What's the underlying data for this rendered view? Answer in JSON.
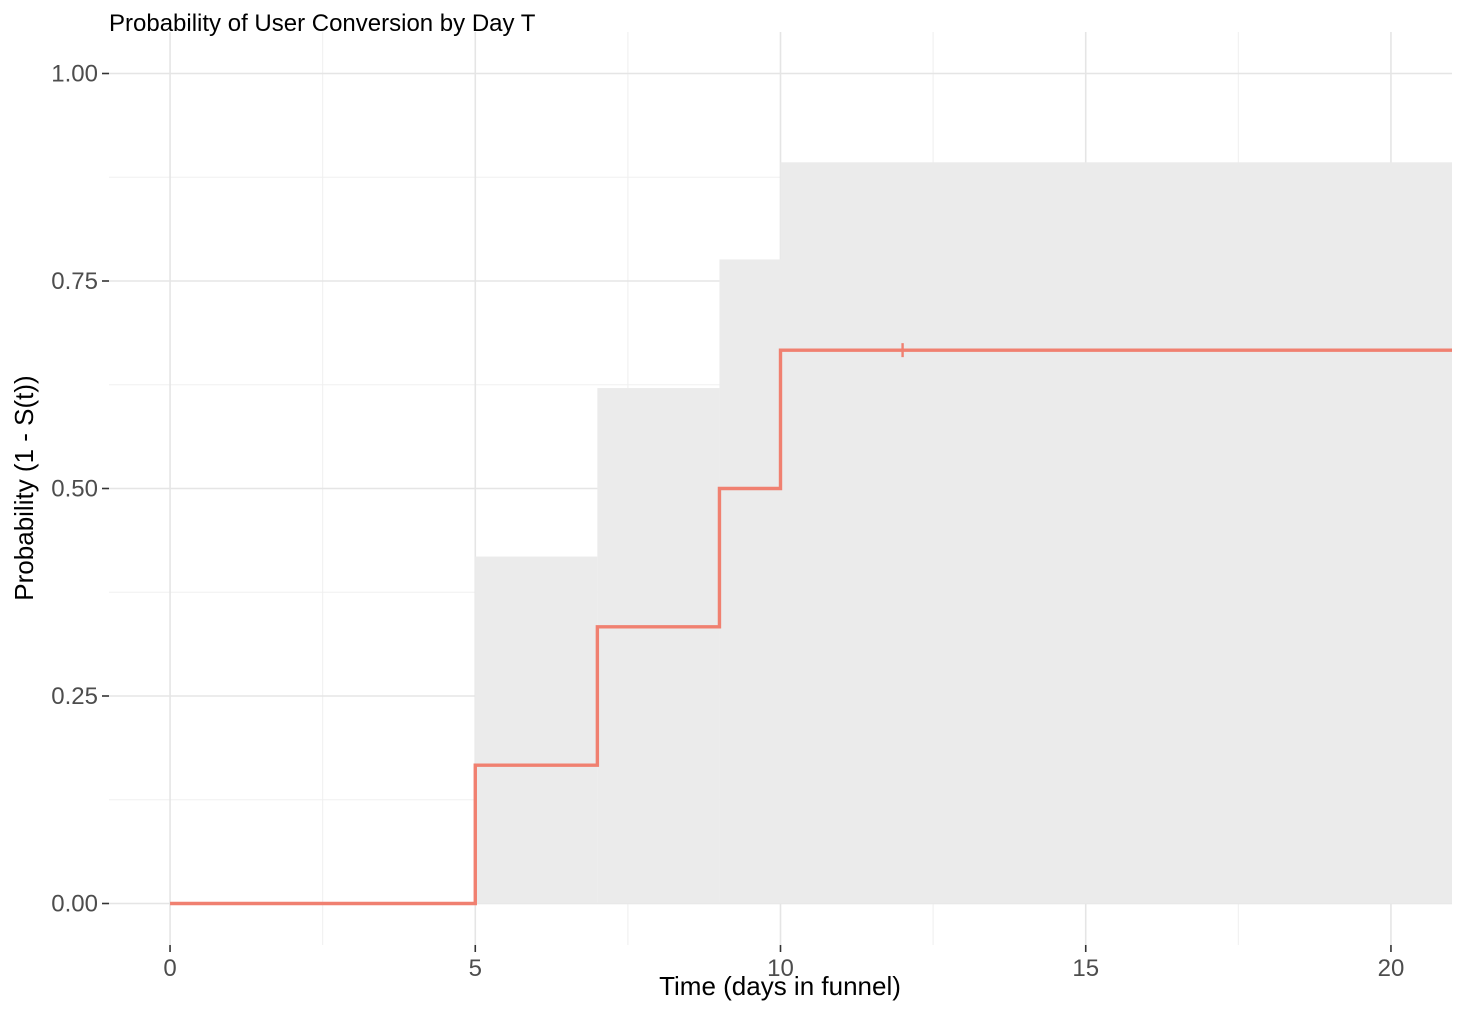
{
  "chart_data": {
    "type": "step",
    "title": "Probability of User Conversion by Day T",
    "xlabel": "Time (days in funnel)",
    "ylabel": "Probability (1 - S(t))",
    "xlim": [
      -1,
      21
    ],
    "ylim": [
      -0.05,
      1.05
    ],
    "x_ticks": [
      0,
      5,
      10,
      15,
      20
    ],
    "x_tick_labels": [
      "0",
      "5",
      "10",
      "15",
      "20"
    ],
    "y_ticks": [
      0,
      0.25,
      0.5,
      0.75,
      1
    ],
    "y_tick_labels": [
      "0.00",
      "0.25",
      "0.50",
      "0.75",
      "1.00"
    ],
    "x_minor_ticks": [
      2.5,
      7.5,
      12.5,
      17.5
    ],
    "y_minor_ticks": [
      0.125,
      0.375,
      0.625,
      0.875
    ],
    "grid": true,
    "series": [
      {
        "color": "#f08070",
        "steps": [
          {
            "x": 0,
            "y": 0
          },
          {
            "x": 5,
            "y": 0.1667
          },
          {
            "x": 7,
            "y": 0.3333
          },
          {
            "x": 9,
            "y": 0.5
          },
          {
            "x": 10,
            "y": 0.6667
          }
        ],
        "x_end": 21,
        "censor_marks": [
          {
            "x": 12,
            "y": 0.6667
          }
        ],
        "confidence_band": {
          "color": "#ebebeb",
          "steps": [
            {
              "x": 0,
              "lower": 0,
              "upper": 0
            },
            {
              "x": 5,
              "lower": 0,
              "upper": 0.418
            },
            {
              "x": 7,
              "lower": 0,
              "upper": 0.621
            },
            {
              "x": 9,
              "lower": 0,
              "upper": 0.776
            },
            {
              "x": 10,
              "lower": 0,
              "upper": 0.893
            }
          ]
        }
      }
    ]
  }
}
